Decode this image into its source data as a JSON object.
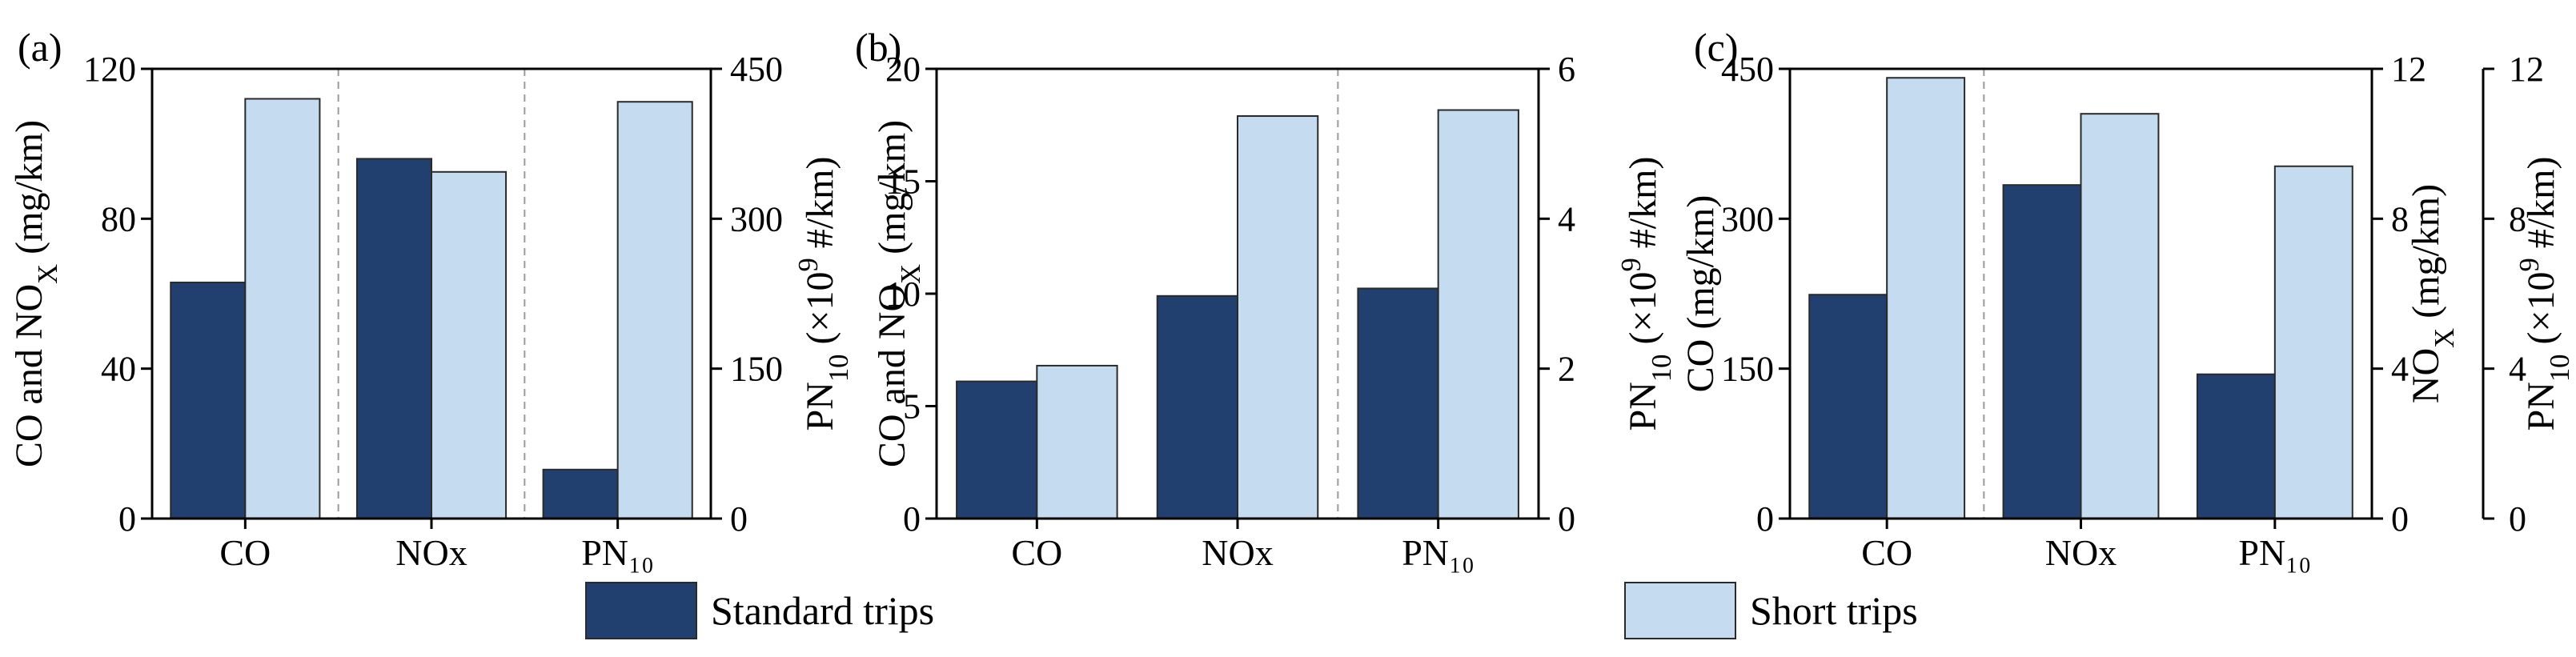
{
  "colors": {
    "standard": "#22406f",
    "short": "#c5dbef",
    "edge": "#2a2a2a",
    "divider": "#9a9a9a"
  },
  "legend": {
    "placement": "bottom",
    "standard": "Standard trips",
    "short": "Short trips"
  },
  "chart_data": [
    {
      "type": "bar",
      "panel_label": "(a)",
      "categories": [
        "CO",
        "NOx",
        "PN₁₀"
      ],
      "ylabel_left": "CO and NO_X (mg/km)",
      "ylabel_right": "PN_10 (×10^9 #/km)",
      "left_axis": {
        "ylim": [
          0,
          120
        ],
        "ticks": [
          0,
          40,
          80,
          120
        ]
      },
      "right_axis": {
        "ylim": [
          0,
          450
        ],
        "ticks": [
          0,
          150,
          300,
          450
        ]
      },
      "category_axis": [
        "left",
        "left",
        "right"
      ],
      "series": [
        {
          "name": "Standard trips",
          "values": [
            63,
            96,
            49
          ]
        },
        {
          "name": "Short trips",
          "values": [
            112,
            92.5,
            417
          ]
        }
      ]
    },
    {
      "type": "bar",
      "panel_label": "(b)",
      "categories": [
        "CO",
        "NOx",
        "PN₁₀"
      ],
      "ylabel_left": "CO and NO_X (mg/km)",
      "ylabel_right": "PN_10 (×10^9 #/km)",
      "left_axis": {
        "ylim": [
          0,
          20
        ],
        "ticks": [
          0,
          5,
          10,
          15,
          20
        ]
      },
      "right_axis": {
        "ylim": [
          0,
          6
        ],
        "ticks": [
          0,
          2,
          4,
          6
        ]
      },
      "category_axis": [
        "left",
        "left",
        "right"
      ],
      "series": [
        {
          "name": "Standard trips",
          "values": [
            6.1,
            9.9,
            3.07
          ]
        },
        {
          "name": "Short trips",
          "values": [
            6.8,
            17.9,
            5.45
          ]
        }
      ]
    },
    {
      "type": "bar",
      "panel_label": "(c)",
      "categories": [
        "CO",
        "NOx",
        "PN₁₀"
      ],
      "ylabel_left": "CO (mg/km)",
      "ylabel_right": "NO_X (mg/km)",
      "ylabel_right2": "PN_10 (×10^9 #/km)",
      "left_axis": {
        "ylim": [
          0,
          450
        ],
        "ticks": [
          0,
          150,
          300,
          450
        ]
      },
      "right_axis": {
        "ylim": [
          0,
          12
        ],
        "ticks": [
          0,
          4,
          8,
          12
        ]
      },
      "right_axis2": {
        "ylim": [
          0,
          12
        ],
        "ticks": [
          0,
          4,
          8,
          12
        ]
      },
      "category_axis": [
        "left",
        "right",
        "right2"
      ],
      "series": [
        {
          "name": "Standard trips",
          "values": [
            224,
            8.9,
            3.85
          ]
        },
        {
          "name": "Short trips",
          "values": [
            441,
            10.8,
            9.4
          ]
        }
      ]
    }
  ]
}
